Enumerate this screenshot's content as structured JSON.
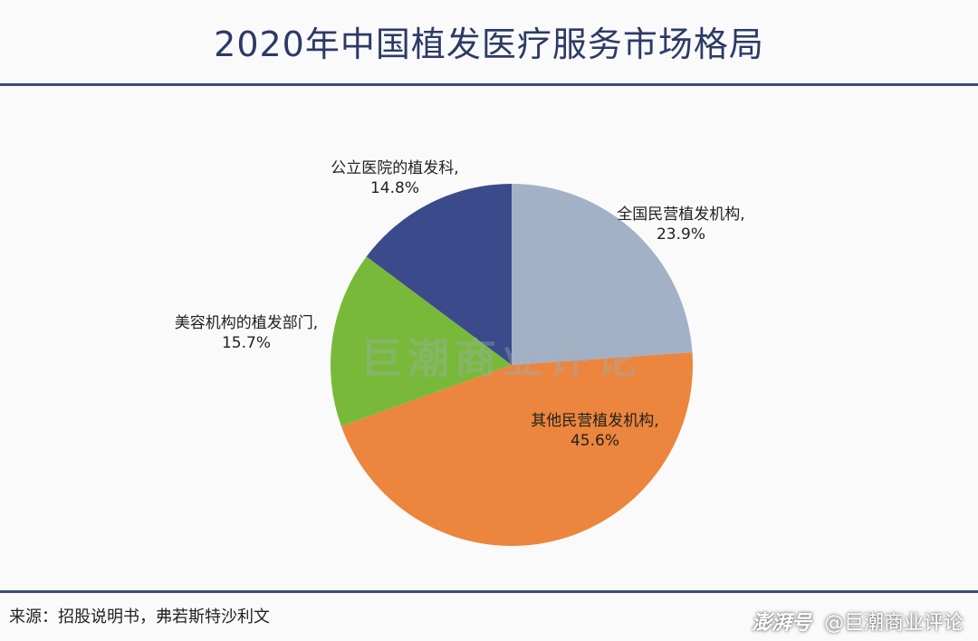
{
  "header": {
    "title": "2020年中国植发医疗服务市场格局"
  },
  "footer": {
    "source": "来源：招股说明书，弗若斯特沙利文",
    "brand": "澎湃号",
    "account": "@巨潮商业评论"
  },
  "watermark": "巨潮商业评论",
  "chart_data": {
    "type": "pie",
    "title": "2020年中国植发医疗服务市场格局",
    "start_angle_deg": 0,
    "direction": "clockwise",
    "slices": [
      {
        "label": "全国民营植发机构,",
        "value": 23.9,
        "value_label": "23.9%",
        "color": "#a3b1c6"
      },
      {
        "label": "其他民营植发机构,",
        "value": 45.6,
        "value_label": "45.6%",
        "color": "#ec853d"
      },
      {
        "label": "美容机构的植发部门,",
        "value": 15.7,
        "value_label": "15.7%",
        "color": "#78b93a"
      },
      {
        "label": "公立医院的植发科,",
        "value": 14.8,
        "value_label": "14.8%",
        "color": "#3b4a8a"
      }
    ]
  }
}
